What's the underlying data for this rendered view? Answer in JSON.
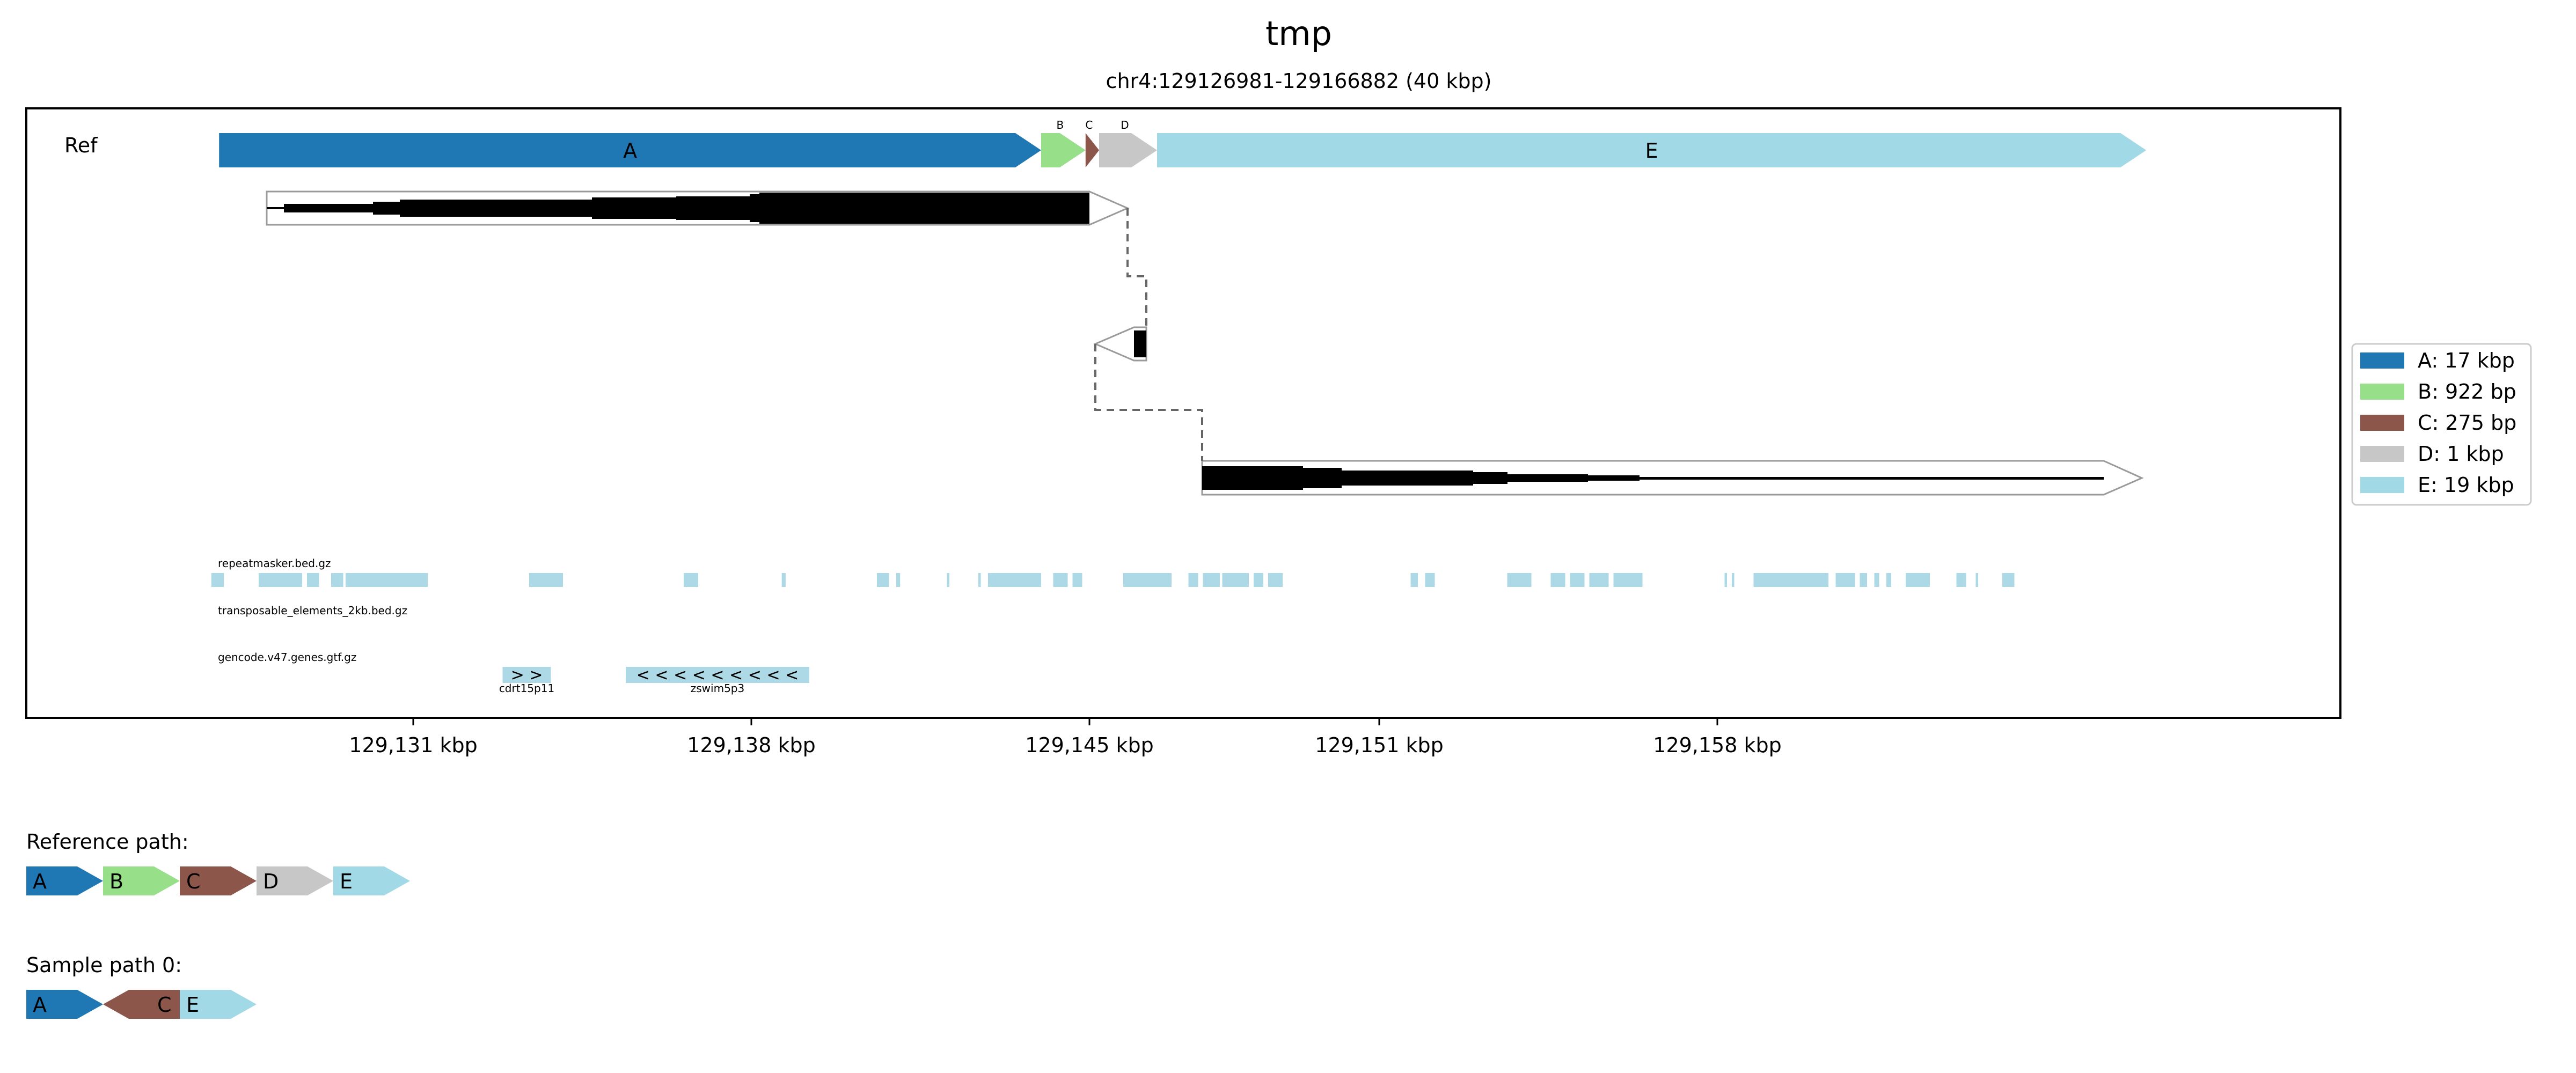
{
  "title": "tmp",
  "subtitle": "chr4:129126981-129166882 (40 kbp)",
  "ref_label": "Ref",
  "colors": {
    "A": "#1f77b4",
    "B": "#98df8a",
    "C": "#8c564b",
    "D": "#c7c7c7",
    "E": "#a1dae6",
    "track_feature": "#add8e6",
    "read": "#000000"
  },
  "segments": [
    {
      "id": "A",
      "start_kbp": 129126.98,
      "end_kbp": 129144.0
    },
    {
      "id": "B",
      "start_kbp": 129144.0,
      "end_kbp": 129144.92
    },
    {
      "id": "C",
      "start_kbp": 129144.92,
      "end_kbp": 129145.2
    },
    {
      "id": "D",
      "start_kbp": 129145.2,
      "end_kbp": 129146.4
    },
    {
      "id": "E",
      "start_kbp": 129146.4,
      "end_kbp": 129166.88
    }
  ],
  "legend": [
    {
      "id": "A",
      "label": "A: 17 kbp"
    },
    {
      "id": "B",
      "label": "B: 922 bp"
    },
    {
      "id": "C",
      "label": "C: 275 bp"
    },
    {
      "id": "D",
      "label": "D: 1 kbp"
    },
    {
      "id": "E",
      "label": "E: 19 kbp"
    }
  ],
  "x_ticks": [
    {
      "value": 129131,
      "label": "129,131 kbp"
    },
    {
      "value": 129138,
      "label": "129,138 kbp"
    },
    {
      "value": 129145,
      "label": "129,145 kbp"
    },
    {
      "value": 129151,
      "label": "129,151 kbp"
    },
    {
      "value": 129158,
      "label": "129,158 kbp"
    }
  ],
  "tracks": [
    {
      "name": "repeatmasker.bed.gz",
      "features": [
        [
          129126.82,
          129127.08
        ],
        [
          129127.8,
          129128.7
        ],
        [
          129128.8,
          129129.05
        ],
        [
          129129.3,
          129129.55
        ],
        [
          129129.6,
          129131.3
        ],
        [
          129133.4,
          129134.1
        ],
        [
          129136.6,
          129136.9
        ],
        [
          129138.63,
          129138.71
        ],
        [
          129140.6,
          129140.85
        ],
        [
          129141.0,
          129141.08
        ],
        [
          129142.05,
          129142.1
        ],
        [
          129142.7,
          129142.75
        ],
        [
          129142.9,
          129144.0
        ],
        [
          129144.25,
          129144.55
        ],
        [
          129144.65,
          129144.85
        ],
        [
          129145.7,
          129146.7
        ],
        [
          129147.05,
          129147.25
        ],
        [
          129147.35,
          129147.7
        ],
        [
          129147.75,
          129148.3
        ],
        [
          129148.4,
          129148.6
        ],
        [
          129148.7,
          129149.0
        ],
        [
          129151.65,
          129151.8
        ],
        [
          129151.95,
          129152.15
        ],
        [
          129153.65,
          129154.15
        ],
        [
          129154.55,
          129154.85
        ],
        [
          129154.95,
          129155.25
        ],
        [
          129155.35,
          129155.75
        ],
        [
          129155.85,
          129156.45
        ],
        [
          129158.15,
          129158.2
        ],
        [
          129158.3,
          129158.35
        ],
        [
          129158.75,
          129160.3
        ],
        [
          129160.45,
          129160.85
        ],
        [
          129160.95,
          129161.1
        ],
        [
          129161.25,
          129161.35
        ],
        [
          129161.5,
          129161.6
        ],
        [
          129161.9,
          129162.4
        ],
        [
          129162.95,
          129163.15
        ],
        [
          129163.35,
          129163.4
        ],
        [
          129163.9,
          129164.15
        ]
      ]
    },
    {
      "name": "transposable_elements_2kb.bed.gz",
      "features": []
    },
    {
      "name": "gencode.v47.genes.gtf.gz",
      "genes": [
        {
          "name": "cdrt15p11",
          "start_kbp": 129132.85,
          "end_kbp": 129133.85,
          "strand_glyphs": "> >"
        },
        {
          "name": "zswim5p3",
          "start_kbp": 129135.4,
          "end_kbp": 129139.2,
          "strand_glyphs": "< < < < < < < < <"
        }
      ]
    }
  ],
  "paths": [
    {
      "label": "Reference path:",
      "segments": [
        {
          "id": "A",
          "dir": "+"
        },
        {
          "id": "B",
          "dir": "+"
        },
        {
          "id": "C",
          "dir": "+"
        },
        {
          "id": "D",
          "dir": "+"
        },
        {
          "id": "E",
          "dir": "+"
        }
      ]
    },
    {
      "label": "Sample path 0:",
      "segments": [
        {
          "id": "A",
          "dir": "+"
        },
        {
          "id": "C",
          "dir": "-"
        },
        {
          "id": "E",
          "dir": "+"
        }
      ]
    }
  ]
}
